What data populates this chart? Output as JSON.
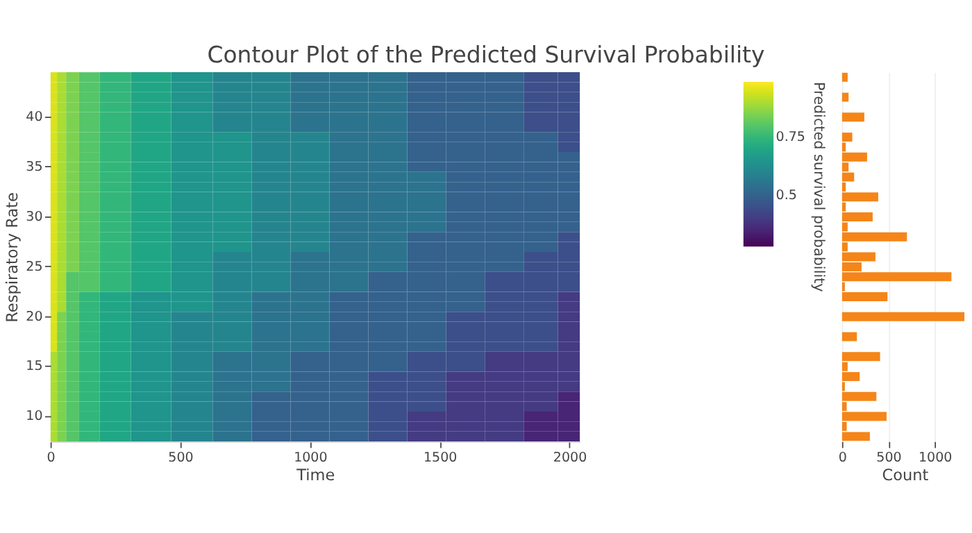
{
  "chart_data": [
    {
      "type": "heatmap",
      "title": "Contour Plot of the Predicted Survival Probability",
      "xlabel": "Time",
      "ylabel": "Respiratory Rate",
      "clabel": "Predicted survival probability",
      "x": [
        10,
        40,
        80,
        140,
        240,
        380,
        550,
        700,
        850,
        1000,
        1150,
        1300,
        1450,
        1600,
        1750,
        1900,
        2010
      ],
      "y_categories": [
        null,
        null,
        null,
        null,
        "40",
        null,
        null,
        null,
        null,
        "35",
        null,
        null,
        null,
        null,
        "30",
        null,
        null,
        null,
        null,
        "25",
        null,
        null,
        null,
        null,
        "20",
        null,
        null,
        null,
        null,
        "15",
        null,
        null,
        null,
        null,
        "10",
        null,
        null
      ],
      "cells": [
        [
          0.95,
          0.9,
          0.85,
          0.8,
          0.75,
          0.7,
          0.65,
          0.6,
          0.6,
          0.55,
          0.55,
          0.55,
          0.5,
          0.5,
          0.5,
          0.45,
          0.45
        ],
        [
          0.95,
          0.9,
          0.85,
          0.8,
          0.75,
          0.7,
          0.65,
          0.6,
          0.6,
          0.55,
          0.55,
          0.55,
          0.5,
          0.5,
          0.5,
          0.45,
          0.45
        ],
        [
          0.95,
          0.9,
          0.85,
          0.8,
          0.75,
          0.7,
          0.65,
          0.6,
          0.6,
          0.55,
          0.55,
          0.55,
          0.5,
          0.5,
          0.5,
          0.45,
          0.45
        ],
        [
          0.95,
          0.9,
          0.85,
          0.8,
          0.75,
          0.7,
          0.65,
          0.6,
          0.6,
          0.55,
          0.55,
          0.55,
          0.5,
          0.5,
          0.5,
          0.45,
          0.45
        ],
        [
          0.95,
          0.9,
          0.85,
          0.8,
          0.75,
          0.7,
          0.65,
          0.6,
          0.6,
          0.55,
          0.55,
          0.55,
          0.5,
          0.5,
          0.5,
          0.45,
          0.45
        ],
        [
          0.95,
          0.9,
          0.85,
          0.8,
          0.75,
          0.7,
          0.65,
          0.6,
          0.6,
          0.55,
          0.55,
          0.55,
          0.5,
          0.5,
          0.5,
          0.45,
          0.45
        ],
        [
          0.95,
          0.9,
          0.85,
          0.8,
          0.75,
          0.7,
          0.65,
          0.65,
          0.6,
          0.6,
          0.55,
          0.55,
          0.5,
          0.5,
          0.5,
          0.5,
          0.45
        ],
        [
          0.95,
          0.9,
          0.85,
          0.8,
          0.75,
          0.7,
          0.65,
          0.65,
          0.6,
          0.6,
          0.55,
          0.55,
          0.5,
          0.5,
          0.5,
          0.5,
          0.45
        ],
        [
          0.95,
          0.9,
          0.85,
          0.8,
          0.75,
          0.7,
          0.65,
          0.65,
          0.6,
          0.6,
          0.55,
          0.55,
          0.5,
          0.5,
          0.5,
          0.5,
          0.5
        ],
        [
          0.95,
          0.9,
          0.85,
          0.8,
          0.75,
          0.7,
          0.65,
          0.65,
          0.6,
          0.6,
          0.55,
          0.55,
          0.5,
          0.5,
          0.5,
          0.5,
          0.5
        ],
        [
          0.95,
          0.9,
          0.85,
          0.8,
          0.75,
          0.7,
          0.65,
          0.65,
          0.6,
          0.6,
          0.55,
          0.55,
          0.55,
          0.5,
          0.5,
          0.5,
          0.5
        ],
        [
          0.95,
          0.9,
          0.85,
          0.8,
          0.75,
          0.7,
          0.65,
          0.65,
          0.6,
          0.6,
          0.55,
          0.55,
          0.55,
          0.5,
          0.5,
          0.5,
          0.5
        ],
        [
          0.95,
          0.9,
          0.85,
          0.8,
          0.75,
          0.7,
          0.65,
          0.65,
          0.6,
          0.6,
          0.55,
          0.55,
          0.55,
          0.5,
          0.5,
          0.5,
          0.5
        ],
        [
          0.95,
          0.9,
          0.85,
          0.8,
          0.75,
          0.7,
          0.65,
          0.65,
          0.6,
          0.6,
          0.55,
          0.55,
          0.55,
          0.5,
          0.5,
          0.5,
          0.5
        ],
        [
          0.95,
          0.9,
          0.85,
          0.8,
          0.75,
          0.7,
          0.65,
          0.65,
          0.6,
          0.6,
          0.55,
          0.55,
          0.55,
          0.5,
          0.5,
          0.5,
          0.5
        ],
        [
          0.95,
          0.9,
          0.85,
          0.8,
          0.75,
          0.7,
          0.65,
          0.65,
          0.6,
          0.6,
          0.55,
          0.55,
          0.55,
          0.5,
          0.5,
          0.5,
          0.5
        ],
        [
          0.95,
          0.9,
          0.85,
          0.8,
          0.75,
          0.7,
          0.65,
          0.65,
          0.6,
          0.6,
          0.55,
          0.55,
          0.5,
          0.5,
          0.5,
          0.5,
          0.45
        ],
        [
          0.95,
          0.9,
          0.85,
          0.8,
          0.75,
          0.7,
          0.65,
          0.65,
          0.6,
          0.6,
          0.55,
          0.55,
          0.5,
          0.5,
          0.5,
          0.5,
          0.45
        ],
        [
          0.95,
          0.9,
          0.85,
          0.8,
          0.75,
          0.7,
          0.65,
          0.6,
          0.6,
          0.55,
          0.55,
          0.55,
          0.5,
          0.5,
          0.5,
          0.45,
          0.45
        ],
        [
          0.95,
          0.9,
          0.85,
          0.8,
          0.75,
          0.7,
          0.65,
          0.6,
          0.6,
          0.55,
          0.55,
          0.55,
          0.5,
          0.5,
          0.5,
          0.45,
          0.45
        ],
        [
          0.95,
          0.9,
          0.8,
          0.8,
          0.75,
          0.7,
          0.65,
          0.6,
          0.6,
          0.55,
          0.55,
          0.5,
          0.5,
          0.5,
          0.45,
          0.45,
          0.45
        ],
        [
          0.95,
          0.9,
          0.8,
          0.8,
          0.75,
          0.7,
          0.65,
          0.6,
          0.6,
          0.55,
          0.55,
          0.5,
          0.5,
          0.5,
          0.45,
          0.45,
          0.45
        ],
        [
          0.95,
          0.9,
          0.8,
          0.75,
          0.7,
          0.65,
          0.65,
          0.6,
          0.55,
          0.55,
          0.5,
          0.5,
          0.5,
          0.5,
          0.45,
          0.45,
          0.4
        ],
        [
          0.95,
          0.9,
          0.8,
          0.75,
          0.7,
          0.65,
          0.65,
          0.6,
          0.55,
          0.55,
          0.5,
          0.5,
          0.5,
          0.5,
          0.45,
          0.45,
          0.4
        ],
        [
          0.95,
          0.85,
          0.8,
          0.75,
          0.7,
          0.65,
          0.6,
          0.6,
          0.55,
          0.55,
          0.5,
          0.5,
          0.5,
          0.45,
          0.45,
          0.45,
          0.4
        ],
        [
          0.95,
          0.85,
          0.8,
          0.75,
          0.7,
          0.65,
          0.6,
          0.6,
          0.55,
          0.55,
          0.5,
          0.5,
          0.5,
          0.45,
          0.45,
          0.45,
          0.4
        ],
        [
          0.95,
          0.85,
          0.8,
          0.75,
          0.7,
          0.65,
          0.6,
          0.6,
          0.55,
          0.55,
          0.5,
          0.5,
          0.5,
          0.45,
          0.45,
          0.45,
          0.4
        ],
        [
          0.95,
          0.85,
          0.8,
          0.75,
          0.7,
          0.65,
          0.6,
          0.6,
          0.55,
          0.55,
          0.5,
          0.5,
          0.5,
          0.45,
          0.45,
          0.45,
          0.4
        ],
        [
          0.9,
          0.85,
          0.8,
          0.75,
          0.7,
          0.65,
          0.6,
          0.55,
          0.55,
          0.5,
          0.5,
          0.5,
          0.45,
          0.45,
          0.4,
          0.4,
          0.4
        ],
        [
          0.9,
          0.85,
          0.8,
          0.75,
          0.7,
          0.65,
          0.6,
          0.55,
          0.55,
          0.5,
          0.5,
          0.5,
          0.45,
          0.45,
          0.4,
          0.4,
          0.4
        ],
        [
          0.9,
          0.85,
          0.8,
          0.75,
          0.7,
          0.65,
          0.6,
          0.55,
          0.55,
          0.5,
          0.5,
          0.45,
          0.45,
          0.4,
          0.4,
          0.4,
          0.4
        ],
        [
          0.9,
          0.85,
          0.8,
          0.75,
          0.7,
          0.65,
          0.6,
          0.55,
          0.55,
          0.5,
          0.5,
          0.45,
          0.45,
          0.4,
          0.4,
          0.4,
          0.4
        ],
        [
          0.9,
          0.85,
          0.8,
          0.75,
          0.7,
          0.65,
          0.6,
          0.55,
          0.5,
          0.5,
          0.5,
          0.45,
          0.45,
          0.4,
          0.4,
          0.4,
          0.35
        ],
        [
          0.9,
          0.85,
          0.8,
          0.75,
          0.7,
          0.65,
          0.6,
          0.55,
          0.5,
          0.5,
          0.5,
          0.45,
          0.45,
          0.4,
          0.4,
          0.4,
          0.35
        ],
        [
          0.9,
          0.85,
          0.8,
          0.75,
          0.7,
          0.65,
          0.6,
          0.55,
          0.5,
          0.5,
          0.5,
          0.45,
          0.4,
          0.4,
          0.4,
          0.35,
          0.35
        ],
        [
          0.9,
          0.85,
          0.8,
          0.75,
          0.7,
          0.65,
          0.6,
          0.55,
          0.5,
          0.5,
          0.5,
          0.45,
          0.4,
          0.4,
          0.4,
          0.35,
          0.35
        ],
        [
          0.9,
          0.85,
          0.8,
          0.75,
          0.7,
          0.65,
          0.6,
          0.55,
          0.5,
          0.5,
          0.5,
          0.45,
          0.4,
          0.4,
          0.4,
          0.35,
          0.35
        ]
      ],
      "xlim": [
        0,
        2040
      ],
      "xticks": [
        0,
        500,
        {
          "value": 1000,
          "label": "1000"
        },
        {
          "value": 1500,
          "label": "1500"
        },
        {
          "value": 2000,
          "label": "2000"
        }
      ],
      "clim": [
        0.28,
        0.99
      ],
      "cticks": [
        0.5,
        0.75
      ],
      "grid": false
    },
    {
      "type": "bar",
      "orientation": "horizontal",
      "xlabel": "Count",
      "color": "#f58518",
      "categories": [
        null,
        null,
        null,
        null,
        null,
        null,
        null,
        null,
        null,
        null,
        null,
        null,
        null,
        null,
        null,
        null,
        null,
        null,
        null,
        null,
        null,
        null,
        null,
        null,
        null,
        null,
        null,
        null,
        null,
        null,
        null,
        null,
        null,
        null,
        null,
        null,
        null
      ],
      "values": [
        60,
        null,
        70,
        null,
        240,
        null,
        110,
        40,
        270,
        70,
        130,
        40,
        390,
        40,
        330,
        60,
        700,
        60,
        360,
        210,
        1180,
        30,
        490,
        null,
        1320,
        null,
        160,
        null,
        410,
        60,
        190,
        30,
        370,
        50,
        480,
        50,
        300
      ],
      "xlim": [
        0,
        1350
      ],
      "xticks": [
        0,
        500,
        {
          "value": 1000,
          "label": "1000"
        }
      ],
      "grid": "x",
      "tick_labels": "x"
    }
  ]
}
